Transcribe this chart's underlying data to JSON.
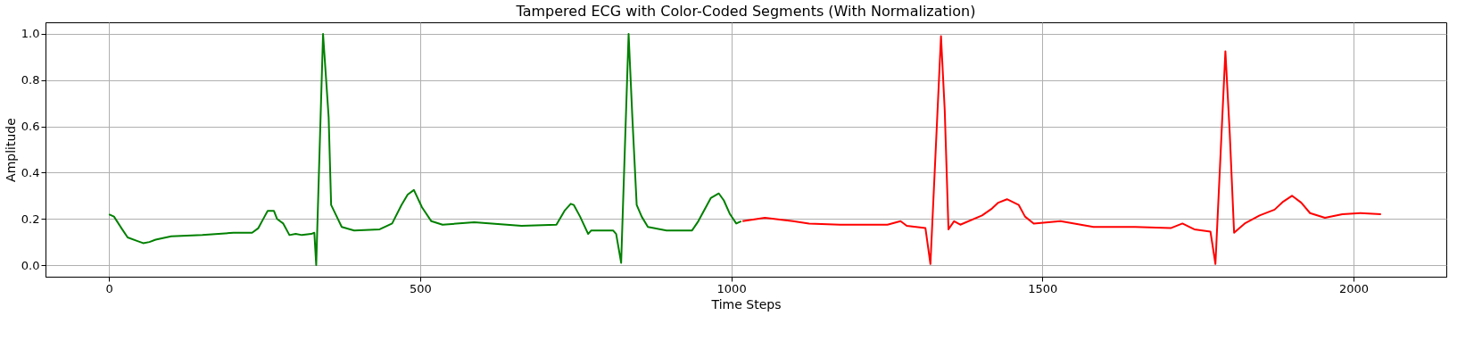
{
  "chart_data": {
    "type": "line",
    "title": "Tampered ECG with Color-Coded Segments (With Normalization)",
    "xlabel": "Time Steps",
    "ylabel": "Amplitude",
    "xlim": [
      -102,
      2149
    ],
    "ylim": [
      -0.05,
      1.05
    ],
    "xticks": [
      0,
      500,
      1000,
      1500,
      2000
    ],
    "yticks": [
      {
        "value": 0,
        "label": "0.0"
      },
      {
        "value": 0.2,
        "label": "0.2"
      },
      {
        "value": 0.4,
        "label": "0.4"
      },
      {
        "value": 0.6,
        "label": "0.6"
      },
      {
        "value": 0.8,
        "label": "0.8"
      },
      {
        "value": 1,
        "label": "1.0"
      }
    ],
    "grid": true,
    "marker": "none",
    "line_style": "solid",
    "series": [
      {
        "color": "#008000",
        "x": [
          0,
          8,
          20,
          30,
          45,
          55,
          65,
          75,
          100,
          150,
          200,
          230,
          240,
          250,
          255,
          265,
          270,
          280,
          290,
          300,
          310,
          325,
          330,
          333,
          344,
          353,
          357,
          366,
          374,
          394,
          435,
          455,
          470,
          480,
          490,
          503,
          518,
          536,
          587,
          663,
          719,
          732,
          742,
          747,
          757,
          770,
          775,
          810,
          815,
          823,
          835,
          841,
          848,
          856,
          866,
          896,
          937,
          947,
          967,
          980,
          988,
          998,
          1008,
          1016
        ],
        "values": [
          0.22,
          0.21,
          0.16,
          0.12,
          0.105,
          0.095,
          0.1,
          0.11,
          0.125,
          0.13,
          0.14,
          0.14,
          0.16,
          0.21,
          0.235,
          0.235,
          0.2,
          0.18,
          0.13,
          0.135,
          0.13,
          0.135,
          0.14,
          0.0,
          1.0,
          0.64,
          0.26,
          0.21,
          0.165,
          0.15,
          0.155,
          0.18,
          0.26,
          0.305,
          0.325,
          0.25,
          0.19,
          0.175,
          0.185,
          0.17,
          0.175,
          0.235,
          0.265,
          0.26,
          0.21,
          0.135,
          0.15,
          0.15,
          0.135,
          0.01,
          1.0,
          0.64,
          0.26,
          0.21,
          0.165,
          0.15,
          0.15,
          0.19,
          0.29,
          0.31,
          0.28,
          0.22,
          0.18,
          0.19
        ]
      },
      {
        "color": "#ff0000",
        "x": [
          1018,
          1054,
          1099,
          1125,
          1175,
          1251,
          1272,
          1282,
          1312,
          1320,
          1337,
          1343,
          1349,
          1358,
          1368,
          1403,
          1419,
          1429,
          1443,
          1462,
          1472,
          1486,
          1529,
          1582,
          1649,
          1706,
          1725,
          1744,
          1770,
          1778,
          1794,
          1801,
          1808,
          1825,
          1849,
          1873,
          1887,
          1901,
          1916,
          1930,
          1954,
          1982,
          2011,
          2044
        ],
        "values": [
          0.19,
          0.205,
          0.19,
          0.18,
          0.175,
          0.175,
          0.19,
          0.17,
          0.16,
          0.005,
          0.99,
          0.67,
          0.155,
          0.19,
          0.175,
          0.215,
          0.245,
          0.27,
          0.285,
          0.26,
          0.21,
          0.18,
          0.19,
          0.165,
          0.165,
          0.16,
          0.18,
          0.155,
          0.145,
          0.005,
          0.925,
          0.57,
          0.14,
          0.18,
          0.215,
          0.24,
          0.275,
          0.3,
          0.27,
          0.225,
          0.205,
          0.22,
          0.225,
          0.22
        ]
      }
    ]
  }
}
